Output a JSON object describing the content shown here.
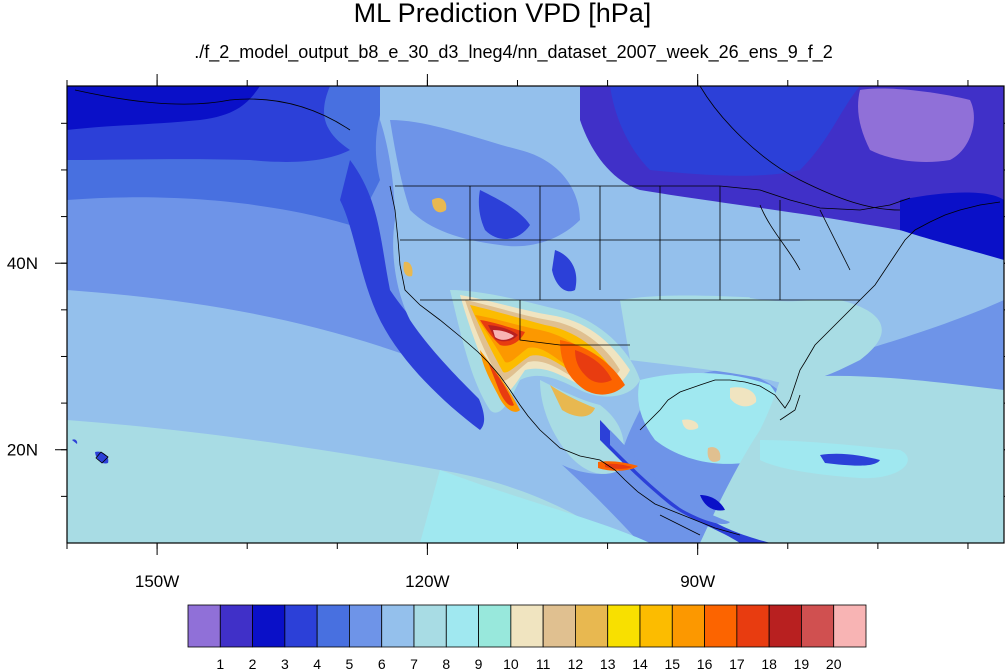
{
  "title": "ML Prediction VPD [hPa]",
  "subtitle": "./f_2_model_output_b8_e_30_d3_lneg4/nn_dataset_2007_week_26_ens_9_f_2",
  "map": {
    "lon_range": [
      -160,
      -56
    ],
    "lat_range": [
      10,
      59
    ],
    "x_ticks": [
      {
        "lon": -150,
        "label": "150W"
      },
      {
        "lon": -120,
        "label": "120W"
      },
      {
        "lon": -90,
        "label": "90W"
      }
    ],
    "y_ticks": [
      {
        "lat": 40,
        "label": "40N"
      },
      {
        "lat": 20,
        "label": "20N"
      }
    ],
    "minor_x_ticks": [
      -160,
      -150,
      -140,
      -130,
      -120,
      -110,
      -100,
      -90,
      -80,
      -70,
      -60
    ],
    "minor_y_ticks": [
      15,
      20,
      25,
      30,
      35,
      40,
      45,
      50,
      55
    ]
  },
  "colorbar": {
    "levels": [
      "1",
      "2",
      "3",
      "4",
      "5",
      "6",
      "7",
      "8",
      "9",
      "10",
      "11",
      "12",
      "13",
      "14",
      "15",
      "16",
      "17",
      "18",
      "19",
      "20"
    ],
    "colors": [
      "#9070d8",
      "#4030c8",
      "#0a10c8",
      "#2c40d8",
      "#4870e0",
      "#6e94e8",
      "#94c0ec",
      "#a8dce4",
      "#a0e8f0",
      "#98e8dc",
      "#f0e4c0",
      "#e0c090",
      "#e8b850",
      "#f8e000",
      "#fcbc00",
      "#fc9800",
      "#fc6400",
      "#e83c10",
      "#b82020",
      "#d05050",
      "#f8b4b4"
    ]
  }
}
